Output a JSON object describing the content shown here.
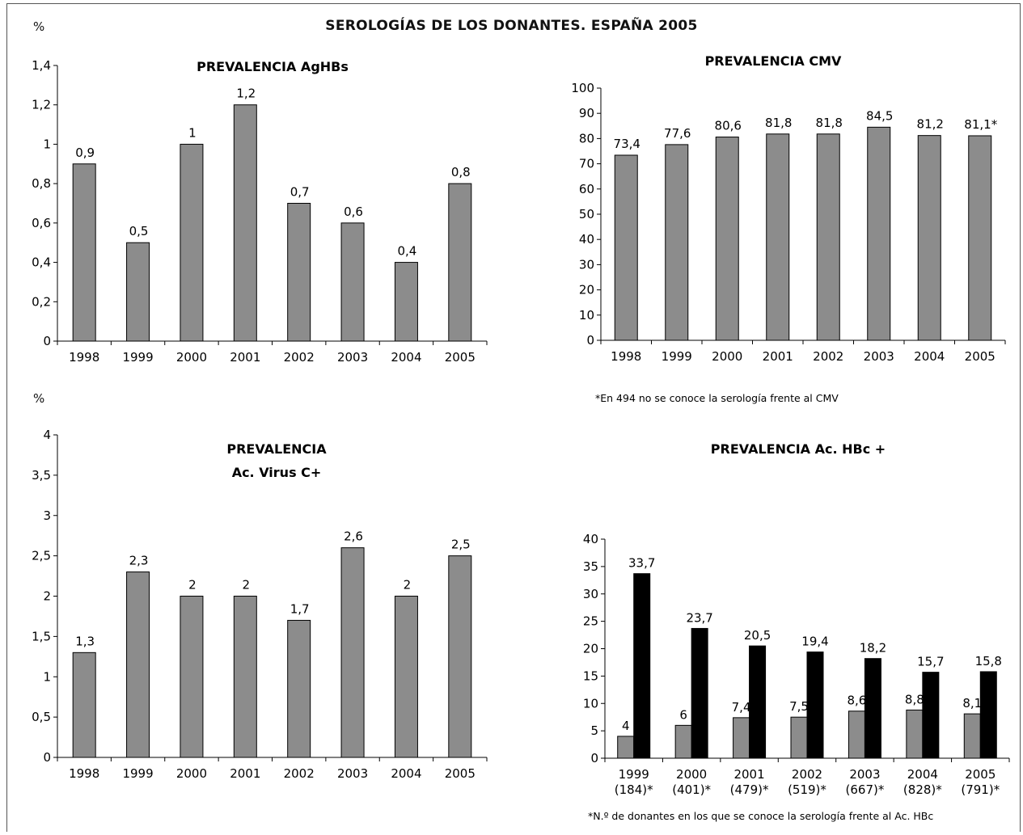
{
  "page": {
    "title": "SEROLOGÍAS DE LOS DONANTES. ESPAÑA 2005",
    "percent_label_top": "%",
    "percent_label_bottom": "%"
  },
  "chart_data": [
    {
      "id": "aghbs",
      "type": "bar",
      "title": "PREVALENCIA AgHBs",
      "categories": [
        "1998",
        "1999",
        "2000",
        "2001",
        "2002",
        "2003",
        "2004",
        "2005"
      ],
      "values": [
        0.9,
        0.5,
        1,
        1.2,
        0.7,
        0.6,
        0.4,
        0.8
      ],
      "value_labels": [
        "0,9",
        "0,5",
        "1",
        "1,2",
        "0,7",
        "0,6",
        "0,4",
        "0,8"
      ],
      "yticks": [
        "0",
        "0,2",
        "0,4",
        "0,6",
        "0,8",
        "1",
        "1,2",
        "1,4"
      ],
      "ylim": [
        0,
        1.4
      ],
      "colors": [
        "#8c8c8c"
      ],
      "grid": false
    },
    {
      "id": "cmv",
      "type": "bar",
      "title": "PREVALENCIA CMV",
      "categories": [
        "1998",
        "1999",
        "2000",
        "2001",
        "2002",
        "2003",
        "2004",
        "2005"
      ],
      "values": [
        73.4,
        77.6,
        80.6,
        81.8,
        81.8,
        84.5,
        81.2,
        81.1
      ],
      "value_labels": [
        "73,4",
        "77,6",
        "80,6",
        "81,8",
        "81,8",
        "84,5",
        "81,2",
        "81,1*"
      ],
      "yticks": [
        "0",
        "10",
        "20",
        "30",
        "40",
        "50",
        "60",
        "70",
        "80",
        "90",
        "100"
      ],
      "ylim": [
        0,
        100
      ],
      "footnote": "*En 494 no se conoce la serología frente al CMV",
      "colors": [
        "#8c8c8c"
      ],
      "grid": false
    },
    {
      "id": "vhc",
      "type": "bar",
      "title": "PREVALENCIA",
      "title2": "Ac. Virus C+",
      "categories": [
        "1998",
        "1999",
        "2000",
        "2001",
        "2002",
        "2003",
        "2004",
        "2005"
      ],
      "values": [
        1.3,
        2.3,
        2,
        2,
        1.7,
        2.6,
        2,
        2.5
      ],
      "value_labels": [
        "1,3",
        "2,3",
        "2",
        "2",
        "1,7",
        "2,6",
        "2",
        "2,5"
      ],
      "yticks": [
        "0",
        "0,5",
        "1",
        "1,5",
        "2",
        "2,5",
        "3",
        "3,5",
        "4"
      ],
      "ylim": [
        0,
        4
      ],
      "colors": [
        "#8c8c8c"
      ],
      "grid": false
    },
    {
      "id": "hbc",
      "type": "bar",
      "title": "PREVALENCIA Ac. HBc +",
      "categories": [
        "1999",
        "2000",
        "2001",
        "2002",
        "2003",
        "2004",
        "2005"
      ],
      "category_sublabels": [
        "(184)*",
        "(401)*",
        "(479)*",
        "(519)*",
        "(667)*",
        "(828)*",
        "(791)*"
      ],
      "series": [
        {
          "values": [
            4,
            6,
            7.4,
            7.5,
            8.6,
            8.8,
            8.1
          ],
          "value_labels": [
            "4",
            "6",
            "7,4",
            "7,5",
            "8,6",
            "8,8",
            "8,1"
          ]
        },
        {
          "values": [
            33.7,
            23.7,
            20.5,
            19.4,
            18.2,
            15.7,
            15.8
          ],
          "value_labels": [
            "33,7",
            "23,7",
            "20,5",
            "19,4",
            "18,2",
            "15,7",
            "15,8"
          ]
        }
      ],
      "yticks": [
        "0",
        "5",
        "10",
        "15",
        "20",
        "25",
        "30",
        "35",
        "40"
      ],
      "ylim": [
        0,
        40
      ],
      "footnote": "*N.º de donantes en los que se conoce la serología frente al Ac. HBc",
      "colors": [
        "#8c8c8c",
        "#000000"
      ],
      "grid": false
    }
  ]
}
